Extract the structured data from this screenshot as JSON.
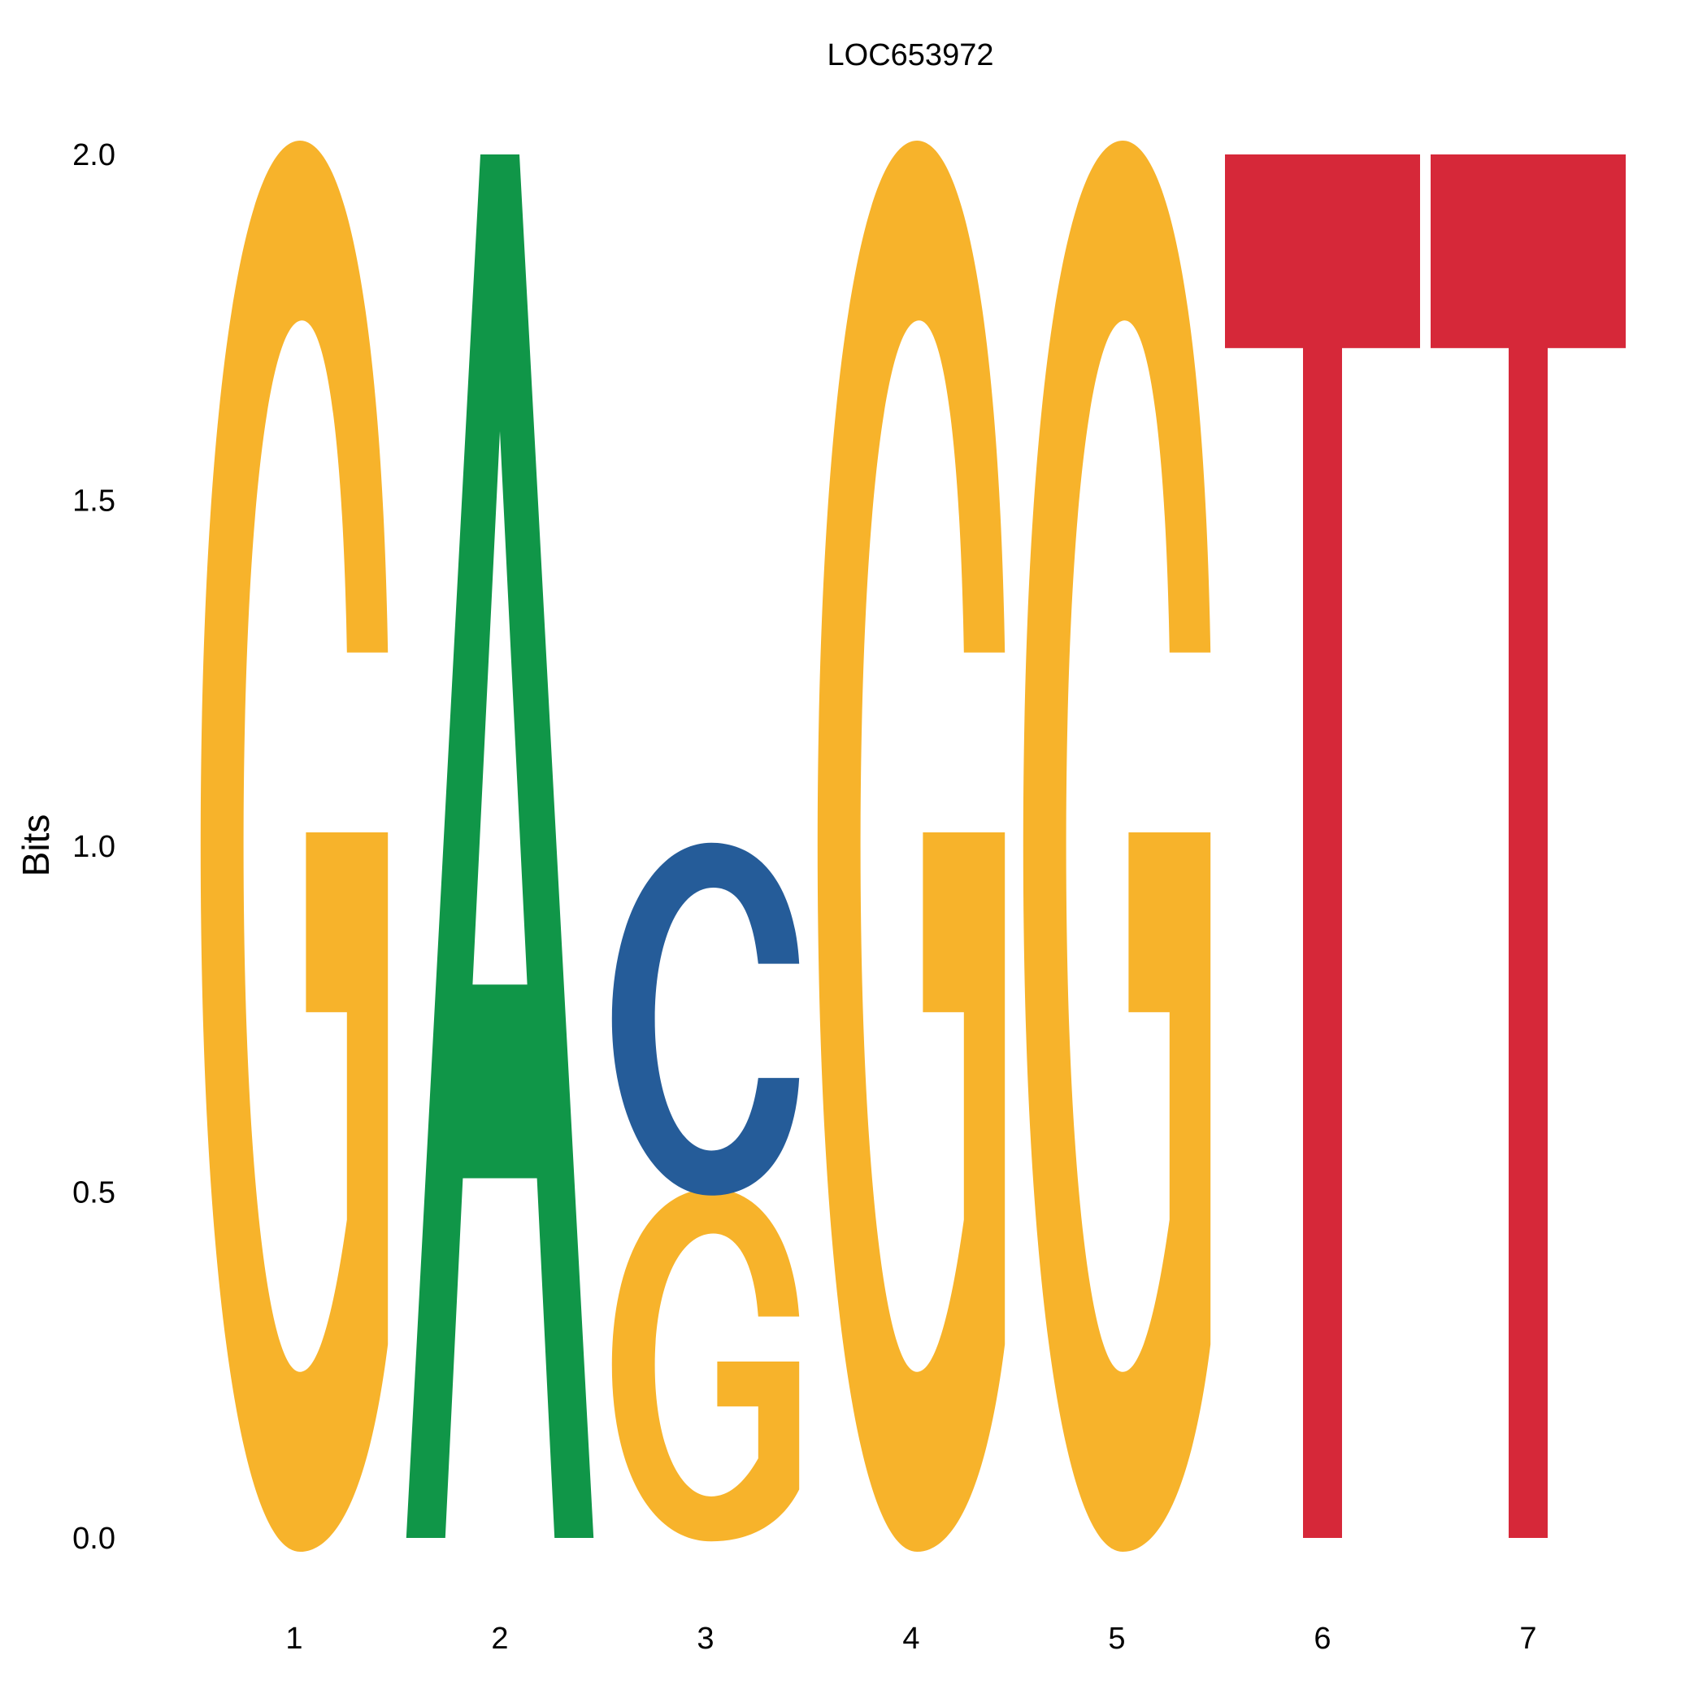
{
  "chart_data": {
    "type": "sequence-logo",
    "title": "LOC653972",
    "ylabel": "Bits",
    "xlabel": "",
    "ylim": [
      0,
      2
    ],
    "yticks": [
      "0.0",
      "0.5",
      "1.0",
      "1.5",
      "2.0"
    ],
    "positions": [
      "1",
      "2",
      "3",
      "4",
      "5",
      "6",
      "7"
    ],
    "colors": {
      "A": "#109648",
      "C": "#255C99",
      "G": "#F7B32B",
      "T": "#D62839"
    },
    "columns": [
      {
        "position": "1",
        "letters": [
          {
            "letter": "G",
            "bits": 2.0
          }
        ]
      },
      {
        "position": "2",
        "letters": [
          {
            "letter": "A",
            "bits": 2.0
          }
        ]
      },
      {
        "position": "3",
        "letters": [
          {
            "letter": "G",
            "bits": 0.5
          },
          {
            "letter": "C",
            "bits": 0.5
          }
        ]
      },
      {
        "position": "4",
        "letters": [
          {
            "letter": "G",
            "bits": 2.0
          }
        ]
      },
      {
        "position": "5",
        "letters": [
          {
            "letter": "G",
            "bits": 2.0
          }
        ]
      },
      {
        "position": "6",
        "letters": [
          {
            "letter": "T",
            "bits": 2.0
          }
        ]
      },
      {
        "position": "7",
        "letters": [
          {
            "letter": "T",
            "bits": 2.0
          }
        ]
      }
    ],
    "grid": false,
    "legend": "none"
  }
}
